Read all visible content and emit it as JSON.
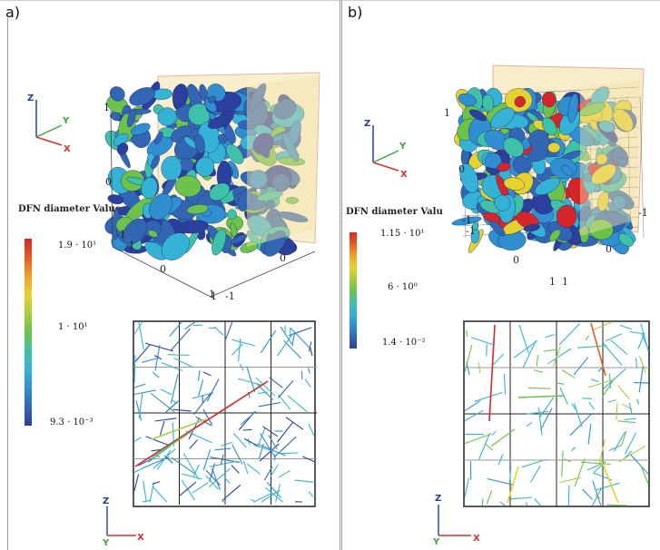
{
  "panel_a": {
    "label": "a)",
    "axes": {
      "z": "Z",
      "y": "Y",
      "x": "X"
    },
    "colorbar": {
      "title": "DFN diameter Value",
      "max": "1.9 · 10¹",
      "mid": "1 · 10¹",
      "min": "9.3 · 10⁻³"
    },
    "cube_ticks": [
      "1",
      "0",
      "-1",
      "-1",
      "0",
      "1",
      "1",
      "-1",
      "0"
    ],
    "trace_axes": {
      "z": "Z",
      "y": "Y",
      "x": "X"
    }
  },
  "panel_b": {
    "label": "b)",
    "axes": {
      "z": "Z",
      "y": "Y",
      "x": "X"
    },
    "colorbar": {
      "title": "DFN diameter Valu",
      "max": "1.15 · 10¹",
      "mid": "6 · 10⁰",
      "min": "1.4 · 10⁻²"
    },
    "cube_ticks": [
      "1",
      "0",
      "-1",
      "-1",
      "0",
      "1",
      "1",
      "-1",
      "0"
    ],
    "trace_axes": {
      "z": "Z",
      "y": "Y",
      "x": "X"
    }
  },
  "colors": {
    "axis_x": "#d8312a",
    "axis_y": "#3aa845",
    "axis_z": "#1f3f9a",
    "plane": "#f4e2a8",
    "plane_edge": "#d77a4a",
    "rainbow": [
      "#2b3f9e",
      "#3266b5",
      "#2f8fd0",
      "#35b3d6",
      "#3fc1a9",
      "#6cc34a",
      "#a7cf3a",
      "#e6d22e",
      "#f0a125",
      "#e85c22",
      "#d7262a"
    ]
  }
}
